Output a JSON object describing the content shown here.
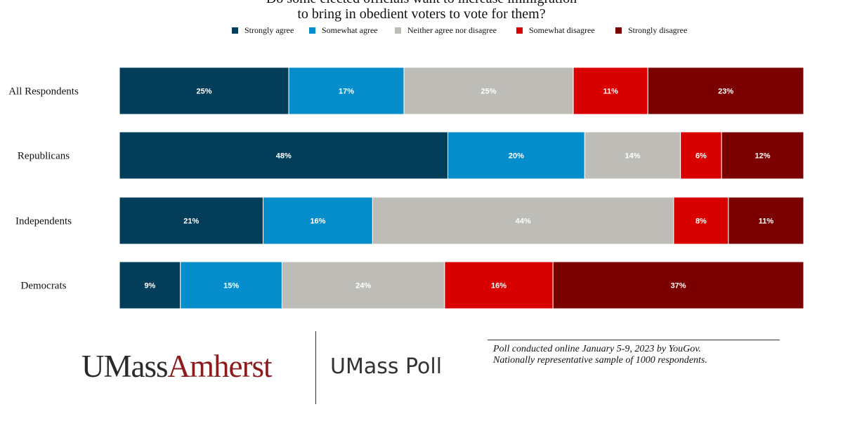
{
  "chart_data": {
    "type": "bar",
    "orientation": "horizontal",
    "stacked": true,
    "title": [
      "Do some elected officials want to increase immigration",
      "to bring in obedient voters to vote for them?"
    ],
    "categories": [
      "All Respondents",
      "Republicans",
      "Independents",
      "Democrats"
    ],
    "series": [
      {
        "name": "Strongly agree",
        "color": "#023e5a",
        "values": [
          25,
          48,
          21,
          9
        ],
        "labels": [
          "25%",
          "48%",
          "21%",
          "9%"
        ]
      },
      {
        "name": "Somewhat agree",
        "color": "#058ecb",
        "values": [
          17,
          20,
          16,
          15
        ],
        "labels": [
          "17%",
          "20%",
          "16%",
          "15%"
        ]
      },
      {
        "name": "Neither agree nor disagree",
        "color": "#bdbcb7",
        "values": [
          25,
          14,
          44,
          24
        ],
        "labels": [
          "25%",
          "14%",
          "44%",
          "24%"
        ]
      },
      {
        "name": "Somewhat disagree",
        "color": "#d80100",
        "values": [
          11,
          6,
          8,
          16
        ],
        "labels": [
          "11%",
          "6%",
          "8%",
          "16%"
        ]
      },
      {
        "name": "Strongly disagree",
        "color": "#7b0000",
        "values": [
          23,
          12,
          11,
          37
        ],
        "labels": [
          "23%",
          "12%",
          "11%",
          "37%"
        ]
      }
    ],
    "xlabel": "",
    "ylabel": "",
    "legend_position": "top",
    "grid": false
  },
  "footer": {
    "logo_umass": "UMass",
    "logo_amherst": "Amherst",
    "poll_name": "UMass Poll",
    "note_line1": "Poll conducted online January 5-9, 2023 by YouGov.",
    "note_line2": "Nationally representative sample of 1000 respondents."
  }
}
